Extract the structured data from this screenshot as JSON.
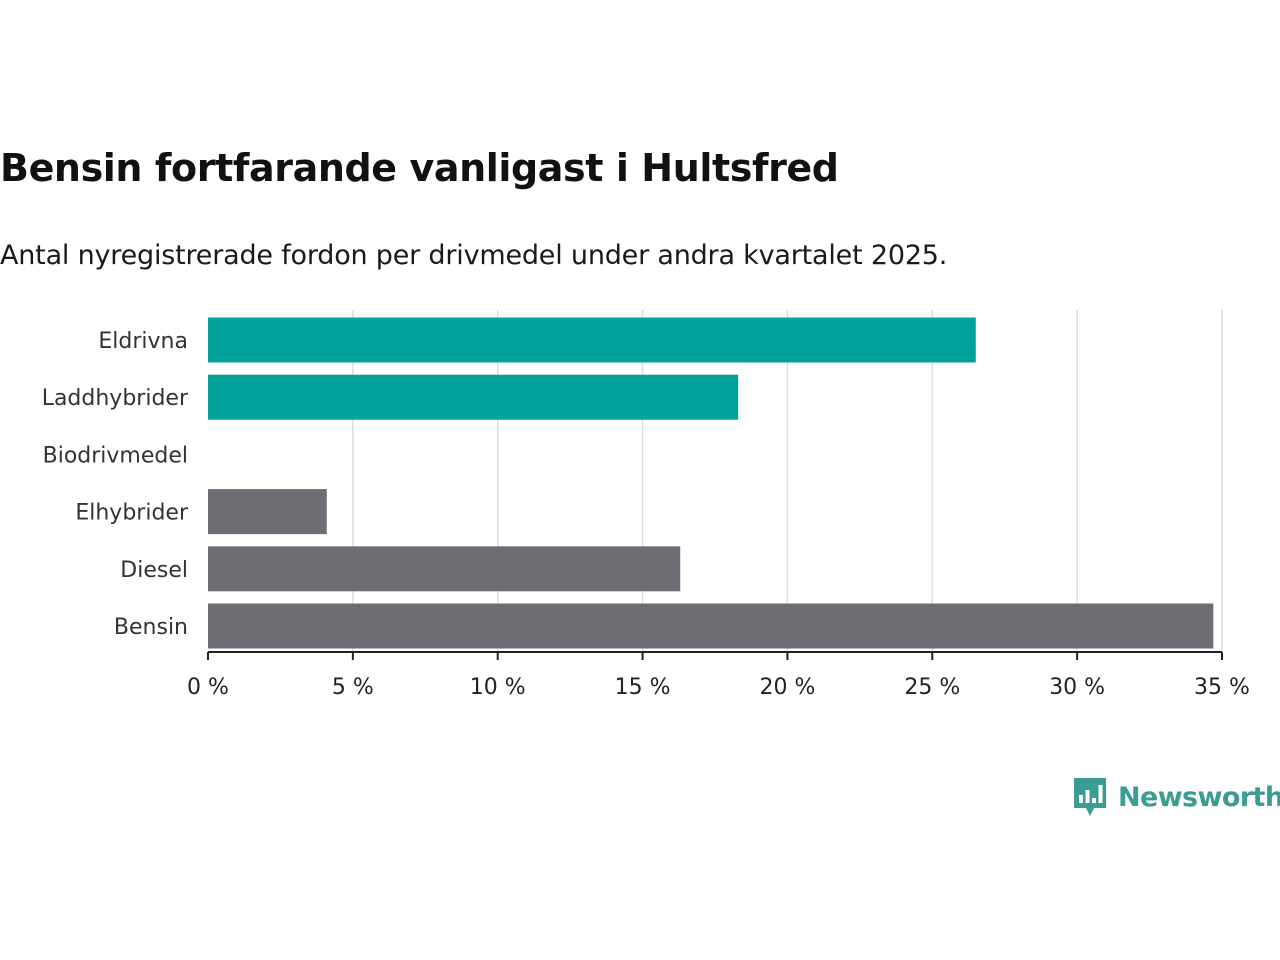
{
  "title": "Bensin fortfarande vanligast i Hultsfred",
  "subtitle": "Antal nyregistrerade fordon per drivmedel under andra kvartalet 2025.",
  "brand": {
    "name": "Newsworthy",
    "color": "#3a9c92",
    "icon": "newsworthy-logo-icon"
  },
  "colors": {
    "highlight": "#00a39a",
    "default": "#6e6d73",
    "grid": "#dcdcdc",
    "axis": "#222222"
  },
  "chart_data": {
    "type": "bar",
    "orientation": "horizontal",
    "categories": [
      "Eldrivna",
      "Laddhybrider",
      "Biodrivmedel",
      "Elhybrider",
      "Diesel",
      "Bensin"
    ],
    "values": [
      26.5,
      18.3,
      0,
      4.1,
      16.3,
      34.7
    ],
    "highlighted": [
      true,
      true,
      false,
      false,
      false,
      false
    ],
    "xlim": [
      0,
      35
    ],
    "ticks": [
      0,
      5,
      10,
      15,
      20,
      25,
      30,
      35
    ],
    "tick_labels": [
      "0 %",
      "5 %",
      "10 %",
      "15 %",
      "20 %",
      "25 %",
      "30 %",
      "35 %"
    ],
    "grid": true,
    "unit": "%"
  }
}
